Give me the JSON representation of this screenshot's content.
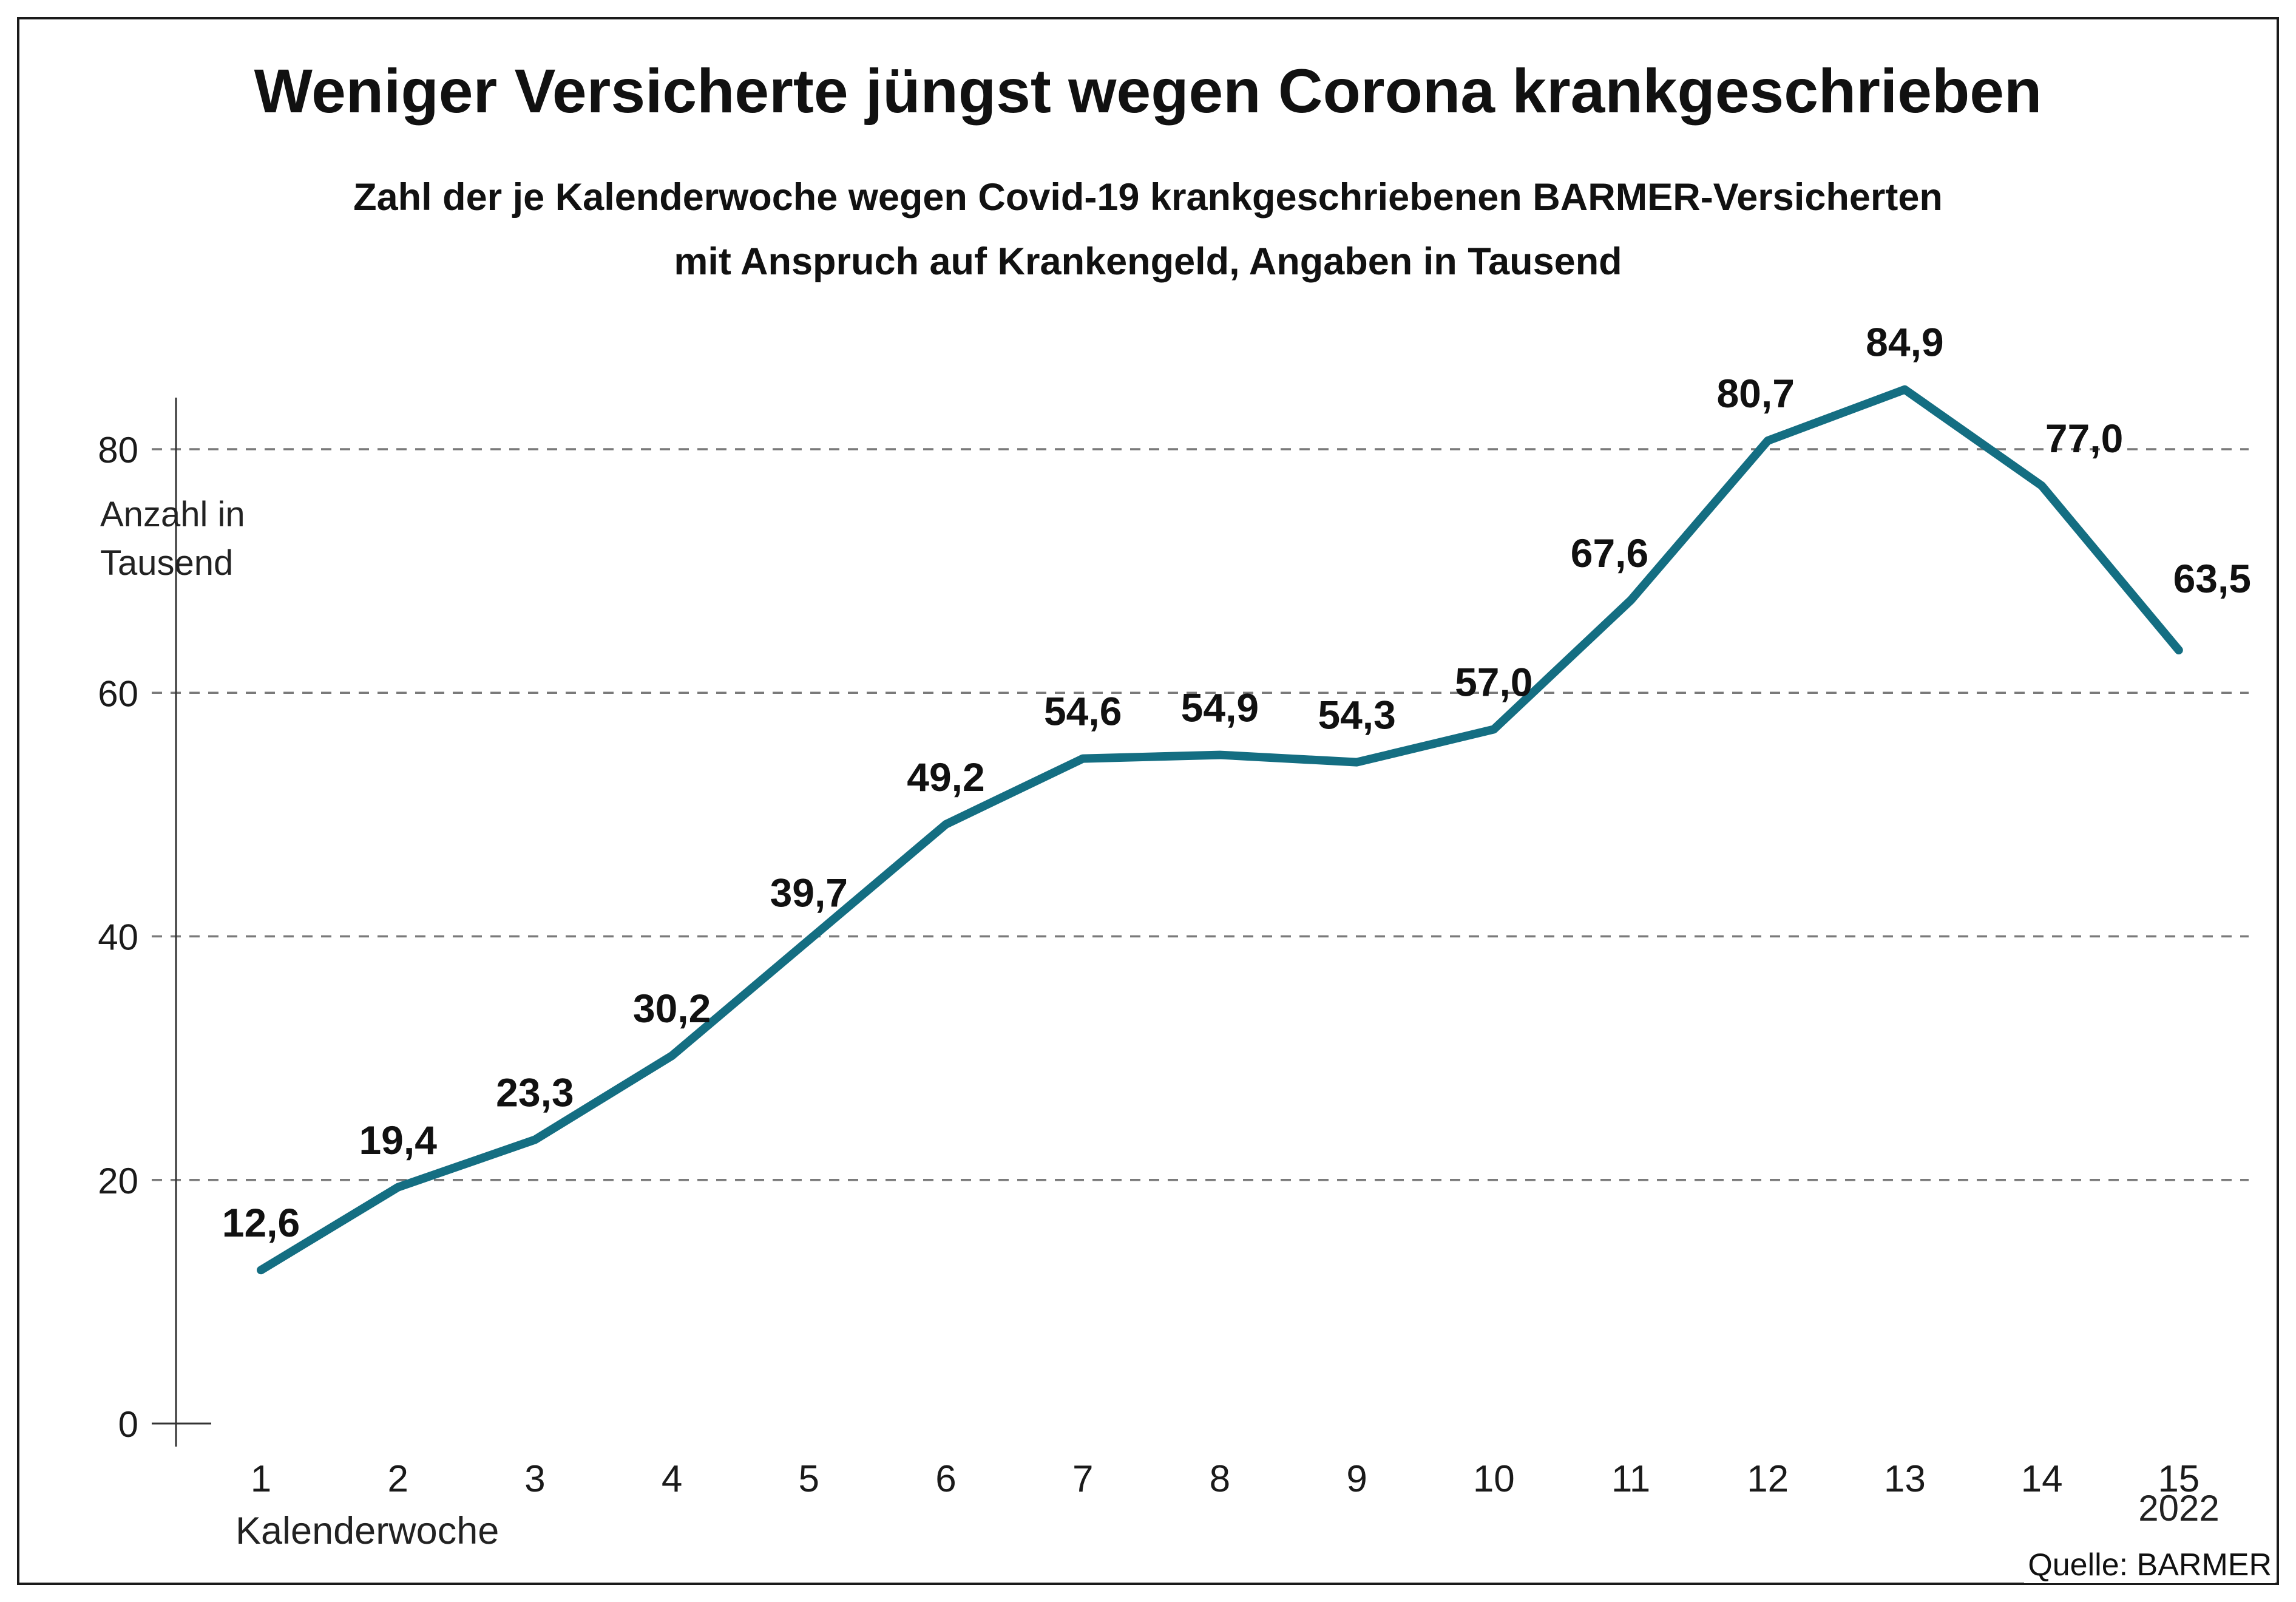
{
  "title": "Weniger Versicherte jüngst wegen Corona krankgeschrieben",
  "subtitle_line1": "Zahl der je Kalenderwoche wegen Covid-19 krankgeschriebenen BARMER-Versicherten",
  "subtitle_line2": "mit Anspruch auf Krankengeld, Angaben in Tausend",
  "y_axis_title_line1": "Anzahl in",
  "y_axis_title_line2": "Tausend",
  "x_axis_title": "Kalenderwoche",
  "x_axis_year": "2022",
  "source": "Quelle: BARMER",
  "colors": {
    "line": "#146e82",
    "grid": "#7a7a7a",
    "axis": "#333333",
    "text": "#1a1a1a"
  },
  "chart_data": {
    "type": "line",
    "title": "Weniger Versicherte jüngst wegen Corona krankgeschrieben",
    "subtitle": "Zahl der je Kalenderwoche wegen Covid-19 krankgeschriebenen BARMER-Versicherten mit Anspruch auf Krankengeld, Angaben in Tausend",
    "xlabel": "Kalenderwoche",
    "ylabel": "Anzahl in Tausend",
    "categories": [
      "1",
      "2",
      "3",
      "4",
      "5",
      "6",
      "7",
      "8",
      "9",
      "10",
      "11",
      "12",
      "13",
      "14",
      "15"
    ],
    "values": [
      12.6,
      19.4,
      23.3,
      30.2,
      39.7,
      49.2,
      54.6,
      54.9,
      54.3,
      57.0,
      67.6,
      80.7,
      84.9,
      77.0,
      63.5
    ],
    "value_labels": [
      "12,6",
      "19,4",
      "23,3",
      "30,2",
      "39,7",
      "49,2",
      "54,6",
      "54,9",
      "54,3",
      "57,0",
      "67,6",
      "80,7",
      "84,9",
      "77,0",
      "63,5"
    ],
    "y_ticks": [
      0,
      20,
      40,
      60,
      80
    ],
    "ylim": [
      0,
      90
    ],
    "grid": "horizontal-dashed",
    "legend": "none",
    "year_label": "2022",
    "source": "Quelle: BARMER"
  }
}
